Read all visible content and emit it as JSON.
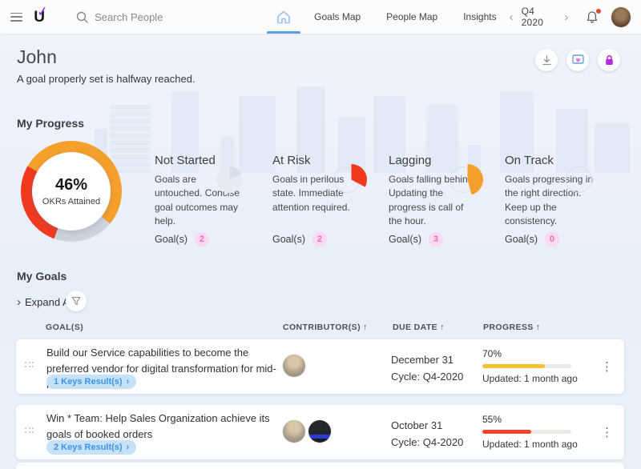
{
  "topbar": {
    "search_placeholder": "Search People",
    "tabs": [
      {
        "label": "Goals Map"
      },
      {
        "label": "People Map"
      },
      {
        "label": "Insights"
      }
    ],
    "period": "Q4 2020"
  },
  "icons": {
    "chevron_left": "‹",
    "chevron_right": "›",
    "sort_asc": "↑",
    "menu_dots": "⋮",
    "expand_chevron": "›"
  },
  "header": {
    "title": "John",
    "subtitle": "A goal properly set is halfway reached."
  },
  "progress": {
    "section_title": "My Progress",
    "donut": {
      "percent": "46%",
      "label": "OKRs Attained"
    },
    "statuses": [
      {
        "title": "Not Started",
        "desc": "Goals are untouched. Concise goal outcomes may help.",
        "goals_label": "Goal(s)",
        "count": "2"
      },
      {
        "title": "At Risk",
        "desc": "Goals in perilous state. Immediate attention required.",
        "goals_label": "Goal(s)",
        "count": "2"
      },
      {
        "title": "Lagging",
        "desc": "Goals falling behind. Updating the progress is call of the hour.",
        "goals_label": "Goal(s)",
        "count": "3"
      },
      {
        "title": "On Track",
        "desc": "Goals progressing in the right direction. Keep up the consistency.",
        "goals_label": "Goal(s)",
        "count": "0"
      }
    ]
  },
  "goals": {
    "section_title": "My Goals",
    "expand_all": "Expand All",
    "columns": {
      "goal": "GOAL(S)",
      "contributors": "CONTRIBUTOR(S)",
      "due": "DUE DATE",
      "progress": "PROGRESS"
    },
    "rows": [
      {
        "title": "Build our Service capabilities to become the preferred vendor for digital transformation for mid-market…",
        "badge": "1 Keys Result(s)",
        "due": "December 31",
        "cycle": "Cycle: Q4-2020",
        "percent": "70%",
        "bar_color": "#f2c233",
        "updated": "Updated: 1 month ago"
      },
      {
        "title": "Win * Team: Help Sales Organization achieve its goals of booked orders",
        "badge": "2 Keys Result(s)",
        "due": "October 31",
        "cycle": "Cycle: Q4-2020",
        "percent": "55%",
        "bar_color": "#f4432c",
        "updated": "Updated: 1 month ago"
      }
    ]
  },
  "colors": {
    "accent_blue": "#4a96e0",
    "orange": "#f6a02c",
    "red": "#f0391f",
    "gray_segment": "#ccd3dc",
    "pink_badge": "#e36ec7",
    "purple_lock": "#b52de0"
  }
}
